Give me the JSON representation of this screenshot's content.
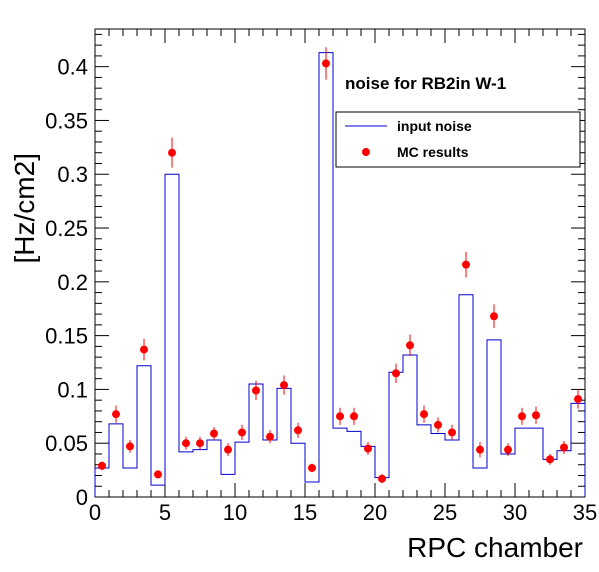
{
  "chart_data": {
    "type": "line",
    "title": "noise for RB2in W-1",
    "xlabel": "RPC chamber",
    "ylabel": "[Hz/cm2]",
    "xlim": [
      0,
      35
    ],
    "ylim": [
      0,
      0.435
    ],
    "xticks": [
      0,
      5,
      10,
      15,
      20,
      25,
      30,
      35
    ],
    "yticks": [
      0,
      0.05,
      0.1,
      0.15,
      0.2,
      0.25,
      0.3,
      0.35,
      0.4
    ],
    "ytick_labels": [
      "0",
      "0.05",
      "0.1",
      "0.15",
      "0.2",
      "0.25",
      "0.3",
      "0.35",
      "0.4"
    ],
    "grid": false,
    "legend_position": "top-right",
    "colors": {
      "histogram": "#0000cc",
      "markers": "#ff0000"
    },
    "series": [
      {
        "name": "input noise",
        "kind": "step-histogram",
        "bin_edges": [
          0,
          1,
          2,
          3,
          4,
          5,
          6,
          7,
          8,
          9,
          10,
          11,
          12,
          13,
          14,
          15,
          16,
          17,
          18,
          19,
          20,
          21,
          22,
          23,
          24,
          25,
          26,
          27,
          28,
          29,
          30,
          31,
          32,
          33,
          34,
          35
        ],
        "values": [
          0.027,
          0.068,
          0.027,
          0.122,
          0.011,
          0.3,
          0.042,
          0.044,
          0.053,
          0.021,
          0.051,
          0.105,
          0.053,
          0.101,
          0.05,
          0.014,
          0.413,
          0.064,
          0.061,
          0.047,
          0.018,
          0.116,
          0.132,
          0.067,
          0.059,
          0.053,
          0.188,
          0.027,
          0.146,
          0.04,
          0.064,
          0.064,
          0.035,
          0.043,
          0.087
        ]
      },
      {
        "name": "MC results",
        "kind": "points-with-errors",
        "x": [
          0.5,
          1.5,
          2.5,
          3.5,
          4.5,
          5.5,
          6.5,
          7.5,
          8.5,
          9.5,
          10.5,
          11.5,
          12.5,
          13.5,
          14.5,
          15.5,
          16.5,
          17.5,
          18.5,
          19.5,
          20.5,
          21.5,
          22.5,
          23.5,
          24.5,
          25.5,
          26.5,
          27.5,
          28.5,
          29.5,
          30.5,
          31.5,
          32.5,
          33.5,
          34.5
        ],
        "y": [
          0.029,
          0.077,
          0.047,
          0.137,
          0.021,
          0.32,
          0.05,
          0.05,
          0.059,
          0.044,
          0.06,
          0.099,
          0.056,
          0.104,
          0.062,
          0.027,
          0.403,
          0.075,
          0.075,
          0.045,
          0.017,
          0.115,
          0.141,
          0.077,
          0.067,
          0.06,
          0.216,
          0.044,
          0.168,
          0.044,
          0.075,
          0.076,
          0.035,
          0.046,
          0.091
        ],
        "yerr": [
          0.004,
          0.008,
          0.006,
          0.01,
          0.003,
          0.014,
          0.006,
          0.006,
          0.006,
          0.006,
          0.007,
          0.009,
          0.006,
          0.009,
          0.007,
          0.004,
          0.015,
          0.008,
          0.008,
          0.006,
          0.004,
          0.009,
          0.01,
          0.008,
          0.007,
          0.007,
          0.012,
          0.007,
          0.011,
          0.006,
          0.008,
          0.008,
          0.005,
          0.006,
          0.009
        ]
      }
    ]
  }
}
